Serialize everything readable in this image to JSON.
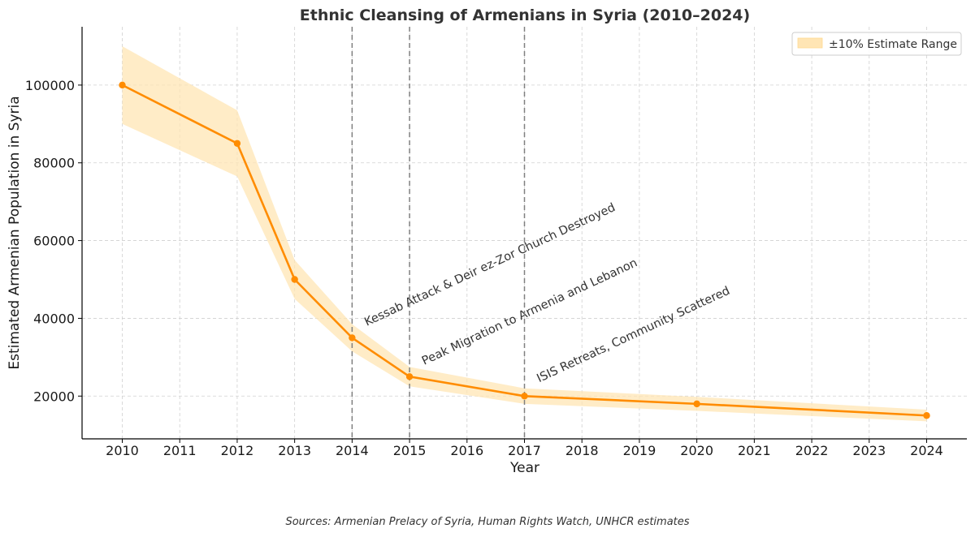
{
  "chart_data": {
    "type": "line",
    "title": "Ethnic Cleansing of Armenians in Syria (2010–2024)",
    "xlabel": "Year",
    "ylabel": "Estimated Armenian Population in Syria",
    "x_ticks": [
      2010,
      2011,
      2012,
      2013,
      2014,
      2015,
      2016,
      2017,
      2018,
      2019,
      2020,
      2021,
      2022,
      2023,
      2024
    ],
    "y_ticks": [
      20000,
      40000,
      60000,
      80000,
      100000
    ],
    "xlim": [
      2009.3,
      2024.7
    ],
    "ylim": [
      9000,
      115000
    ],
    "grid": true,
    "x": [
      2010,
      2012,
      2013,
      2014,
      2015,
      2017,
      2020,
      2024
    ],
    "series": [
      {
        "values": [
          100000,
          85000,
          50000,
          35000,
          25000,
          20000,
          18000,
          15000
        ],
        "color": "#ff8c00"
      }
    ],
    "band": {
      "name": "±10% Estimate Range",
      "lower": [
        90000,
        76500,
        45000,
        31500,
        22500,
        18000,
        16200,
        13500
      ],
      "upper": [
        110000,
        93500,
        55000,
        38500,
        27500,
        22000,
        19800,
        16500
      ],
      "color": "#ffe5b4"
    },
    "legend_position": "top-right",
    "events": [
      {
        "x": 2014,
        "label": "Kessab Attack & Deir ez-Zor Church Destroyed",
        "label_y": 38000
      },
      {
        "x": 2015,
        "label": "Peak Migration to Armenia and Lebanon",
        "label_y": 28000
      },
      {
        "x": 2017,
        "label": "ISIS Retreats, Community Scattered",
        "label_y": 23500
      }
    ]
  },
  "footer": {
    "source": "Sources: Armenian Prelacy of Syria, Human Rights Watch, UNHCR estimates"
  }
}
